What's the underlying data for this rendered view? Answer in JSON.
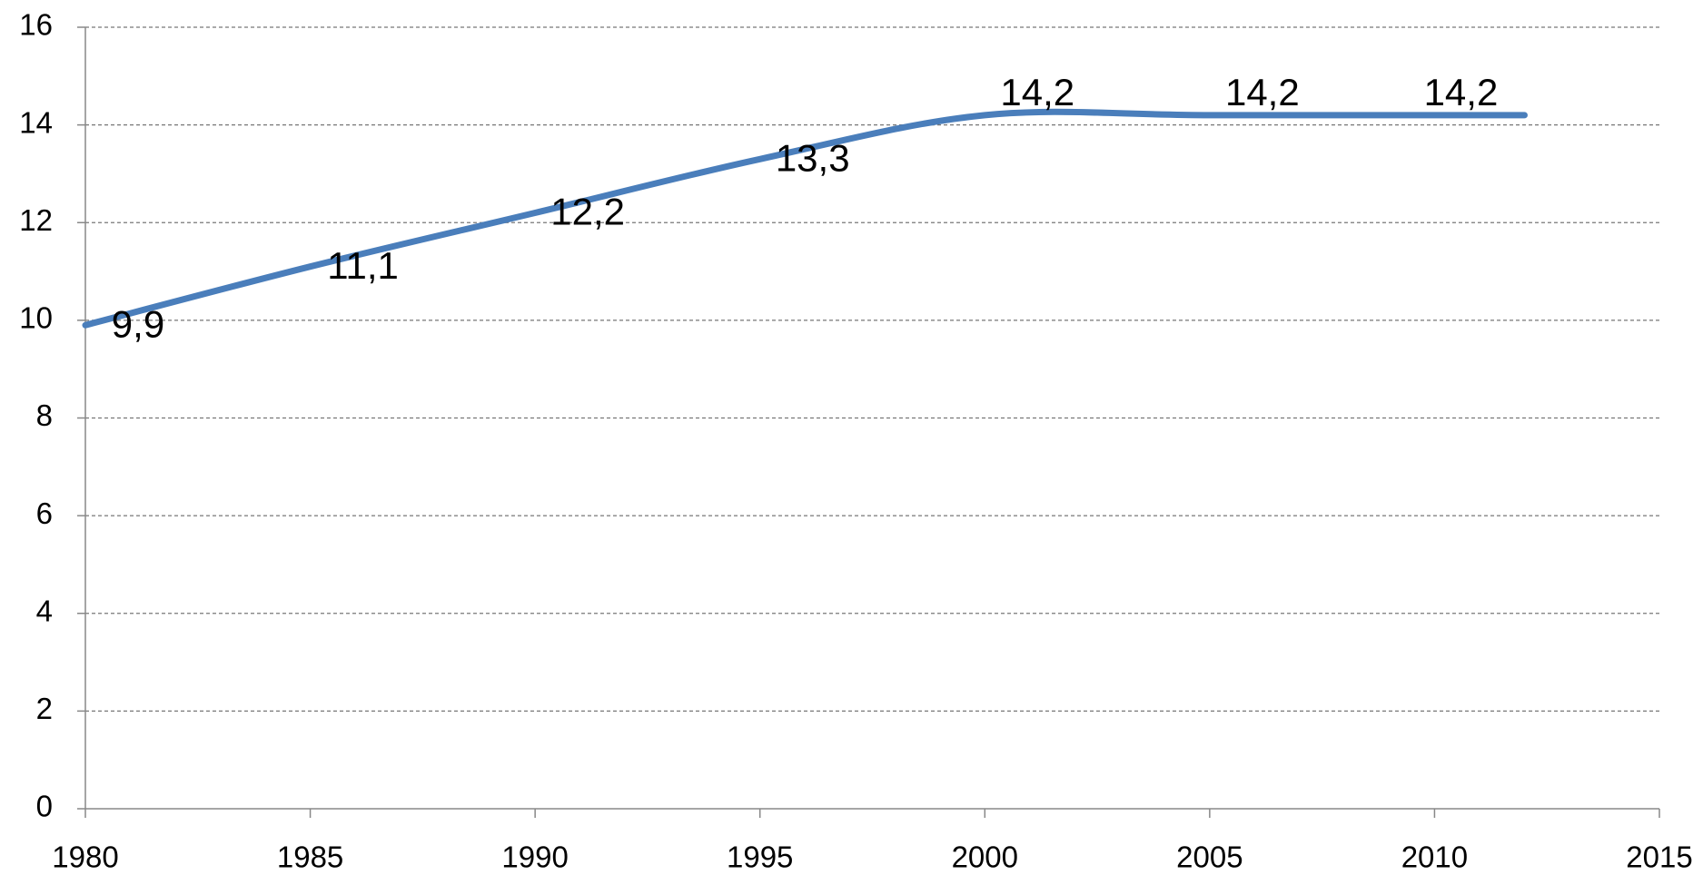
{
  "chart_data": {
    "type": "line",
    "x": [
      1980,
      1985,
      1990,
      1995,
      2000,
      2005,
      2012
    ],
    "series": [
      {
        "color": "#4a7ebb",
        "values": [
          9.9,
          11.1,
          12.2,
          13.3,
          14.2,
          14.2,
          14.2
        ],
        "value_labels": [
          "9,9",
          "11,1",
          "12,2",
          "13,3",
          "14,2",
          "14,2",
          "14,2"
        ]
      }
    ],
    "xlim": [
      1980,
      2015
    ],
    "xticks": [
      1980,
      1985,
      1990,
      1995,
      2000,
      2005,
      2010,
      2015
    ],
    "ylim": [
      0,
      16
    ],
    "yticks": [
      0,
      2,
      4,
      6,
      8,
      10,
      12,
      14,
      16
    ],
    "grid": true
  }
}
